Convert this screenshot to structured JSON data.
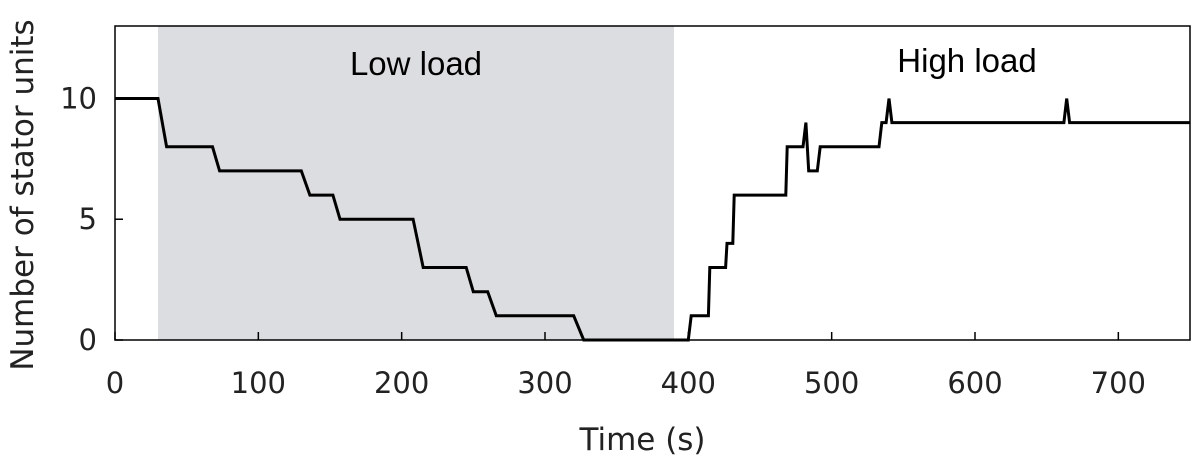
{
  "chart_data": {
    "type": "line",
    "step": true,
    "xlabel": "Time (s)",
    "ylabel": "Number of stator units",
    "xlim": [
      0,
      750
    ],
    "ylim": [
      0,
      13
    ],
    "xticks": [
      0,
      100,
      200,
      300,
      400,
      500,
      600,
      700
    ],
    "yticks": [
      0,
      5,
      10
    ],
    "grid": false,
    "regions": [
      {
        "label": "Low load",
        "x_start": 30,
        "x_end": 390,
        "color": "#dcdde0"
      },
      {
        "label": "High load",
        "x_start": 390,
        "x_end": 750,
        "color": "#ffffff"
      }
    ],
    "series": [
      {
        "color": "#000000",
        "x": [
          0,
          30,
          36,
          68,
          73,
          130,
          136,
          152,
          157,
          208,
          215,
          245,
          250,
          260,
          266,
          270,
          275,
          320,
          327,
          395,
          400,
          402,
          414,
          415,
          426,
          427,
          431,
          432,
          468,
          469,
          480,
          482,
          484,
          486,
          490,
          492,
          533,
          535,
          538,
          540,
          542,
          660,
          662,
          664,
          666,
          750
        ],
        "y": [
          10,
          10,
          8,
          8,
          7,
          7,
          6,
          6,
          5,
          5,
          3,
          3,
          2,
          2,
          1,
          1,
          1,
          1,
          0,
          0,
          0,
          1,
          1,
          3,
          3,
          4,
          4,
          6,
          6,
          8,
          8,
          9,
          7,
          7,
          7,
          8,
          8,
          9,
          9,
          10,
          9,
          9,
          9,
          10,
          9,
          9
        ]
      }
    ]
  }
}
